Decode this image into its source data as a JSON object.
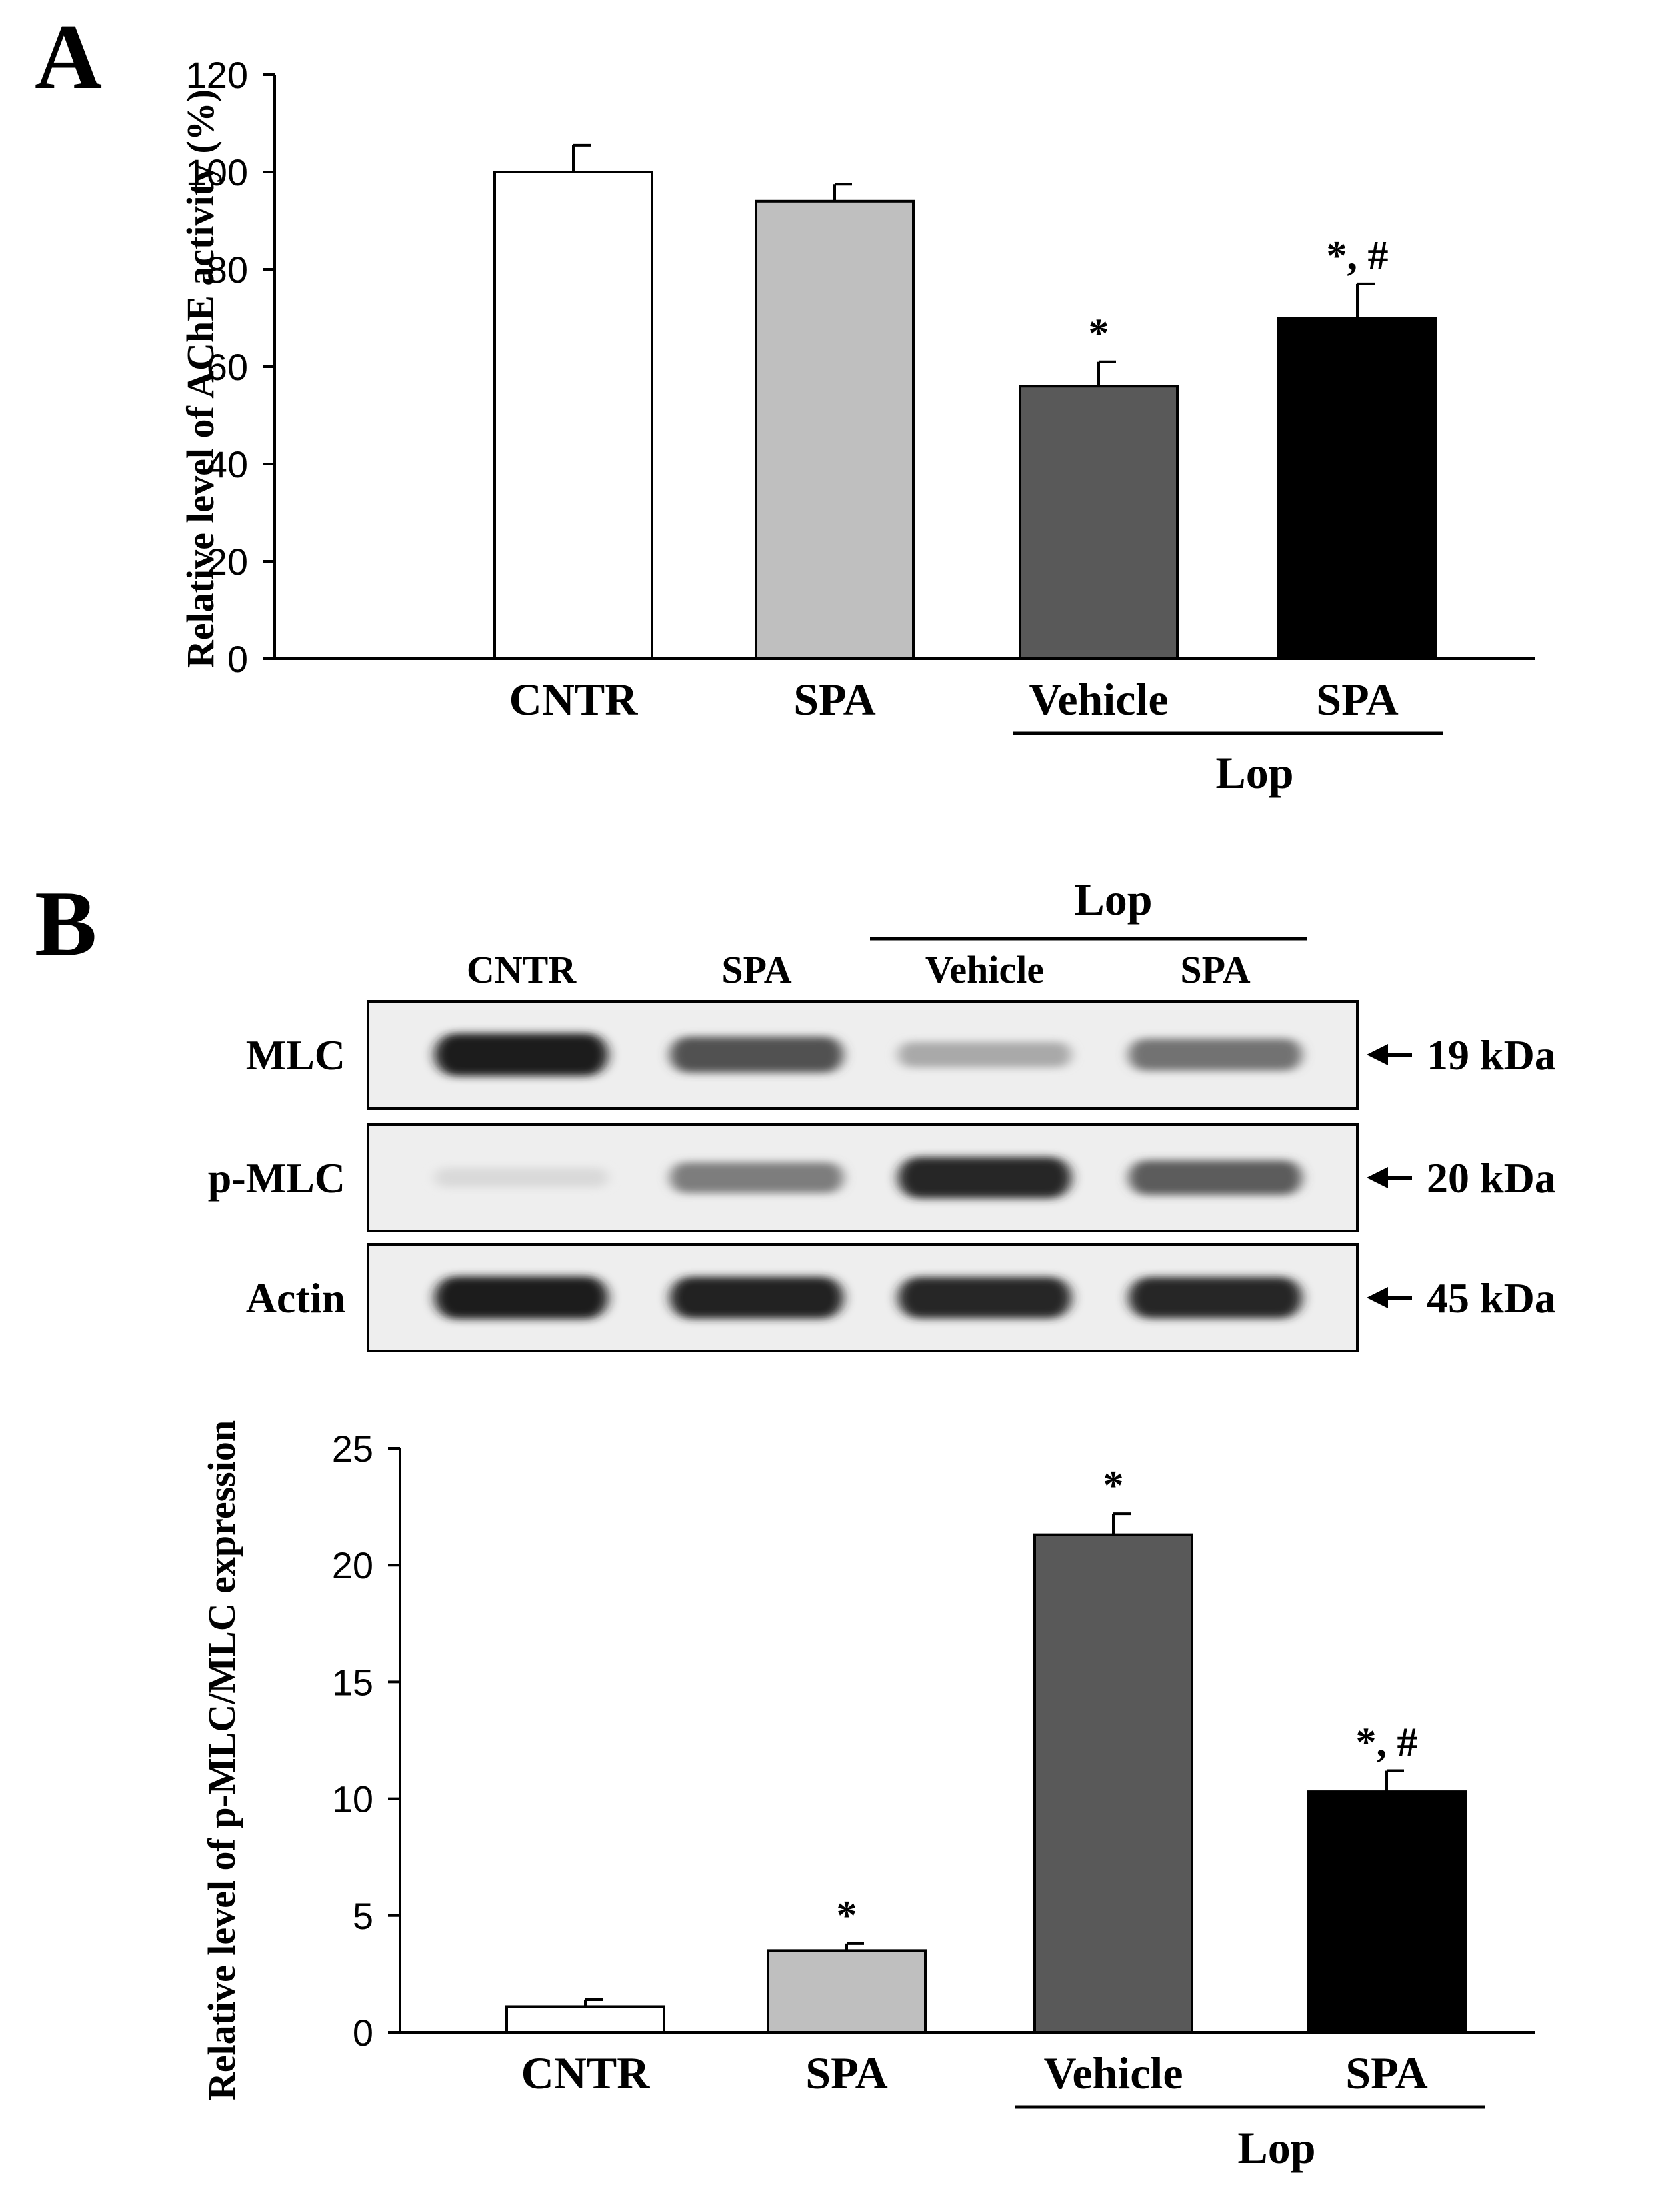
{
  "panel_a": {
    "letter": "A",
    "chart_data": {
      "type": "bar",
      "categories": [
        "CNTR",
        "SPA",
        "Vehicle",
        "SPA"
      ],
      "group_label": "Lop",
      "group_members": [
        2,
        3
      ],
      "ylabel": "Relative level of AChE activity (%)",
      "ylim": [
        0,
        120
      ],
      "yticks": [
        0,
        20,
        40,
        60,
        80,
        100,
        120
      ],
      "series": [
        {
          "values": [
            100,
            94,
            56,
            70
          ],
          "errors": [
            5.5,
            3.5,
            5,
            7
          ],
          "colors": [
            "#ffffff",
            "#bfbfbf",
            "#595959",
            "#000000"
          ],
          "annotations": [
            "",
            "",
            "*",
            "*, #"
          ]
        }
      ]
    }
  },
  "panel_b": {
    "letter": "B",
    "blot": {
      "group_label": "Lop",
      "lanes": [
        "CNTR",
        "SPA",
        "Vehicle",
        "SPA"
      ],
      "rows": [
        {
          "label": "MLC",
          "size": "19 kDa",
          "intensities": [
            0.95,
            0.7,
            0.3,
            0.55
          ]
        },
        {
          "label": "p-MLC",
          "size": "20 kDa",
          "intensities": [
            0.08,
            0.5,
            0.9,
            0.65
          ]
        },
        {
          "label": "Actin",
          "size": "45 kDa",
          "intensities": [
            0.95,
            0.92,
            0.9,
            0.9
          ]
        }
      ]
    },
    "chart_data": {
      "type": "bar",
      "categories": [
        "CNTR",
        "SPA",
        "Vehicle",
        "SPA"
      ],
      "group_label": "Lop",
      "group_members": [
        2,
        3
      ],
      "ylabel": "Relative level of p-MLC/MLC expression",
      "ylim": [
        0,
        25
      ],
      "yticks": [
        0,
        5,
        10,
        15,
        20,
        25
      ],
      "series": [
        {
          "values": [
            1.1,
            3.5,
            21.3,
            10.3
          ],
          "errors": [
            0.3,
            0.3,
            0.9,
            0.9
          ],
          "colors": [
            "#ffffff",
            "#bfbfbf",
            "#595959",
            "#000000"
          ],
          "annotations": [
            "",
            "*",
            "*",
            "*, #"
          ]
        }
      ]
    }
  }
}
